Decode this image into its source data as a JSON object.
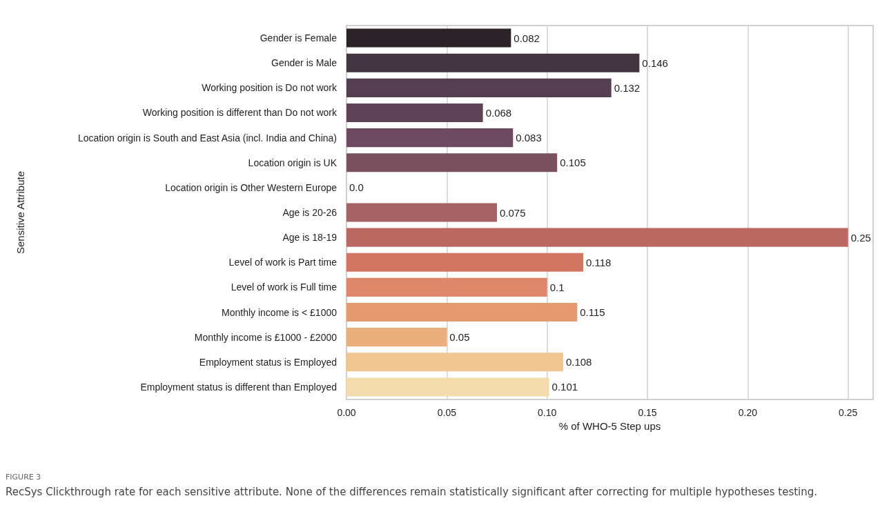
{
  "chart_data": {
    "type": "bar",
    "orientation": "horizontal",
    "xlabel": "% of WHO-5 Step ups",
    "ylabel": "Sensitive Attribute",
    "categories": [
      "Gender is Female",
      "Gender is Male",
      "Working position is Do not work",
      "Working position is different than Do not work",
      "Location origin is South and East Asia (incl. India and China)",
      "Location origin is UK",
      "Location origin is Other Western Europe",
      "Age is 20-26",
      "Age is 18-19",
      "Level of work is Part time",
      "Level of work is Full time",
      "Monthly income is < £1000",
      "Monthly income is £1000 - £2000",
      "Employment status is Employed",
      "Employment status is different than Employed"
    ],
    "values": [
      0.082,
      0.146,
      0.132,
      0.068,
      0.083,
      0.105,
      0.0,
      0.075,
      0.25,
      0.118,
      0.1,
      0.115,
      0.05,
      0.108,
      0.101
    ],
    "value_labels": [
      "0.082",
      "0.146",
      "0.132",
      "0.068",
      "0.083",
      "0.105",
      "0.0",
      "0.075",
      "0.25",
      "0.118",
      "0.1",
      "0.115",
      "0.05",
      "0.108",
      "0.101"
    ],
    "colors": [
      "#2b2327",
      "#43353f",
      "#533f51",
      "#5f4356",
      "#6d4a60",
      "#7a515e",
      "#8c5862",
      "#a56164",
      "#bb6863",
      "#d27563",
      "#df876a",
      "#e59a72",
      "#ebae7d",
      "#f1c590",
      "#f3dbab"
    ],
    "xlim": [
      0,
      0.2625
    ],
    "xticks": [
      {
        "value": 0,
        "label": "0.00"
      },
      {
        "value": 0.05,
        "label": "0.05"
      },
      {
        "value": 0.1,
        "label": "0.10"
      },
      {
        "value": 0.15,
        "label": "0.15"
      },
      {
        "value": 0.2,
        "label": "0.20"
      },
      {
        "value": 0.25,
        "label": "0.25"
      }
    ],
    "grid": "x",
    "annotations": [
      "FIGURE 3",
      "RecSys Clickthrough rate for each sensitive attribute. None of the differences remain statistically significant after correcting for multiple hypotheses testing."
    ]
  }
}
